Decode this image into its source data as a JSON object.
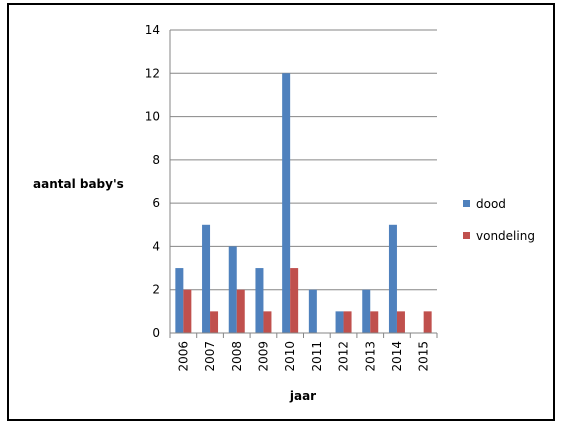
{
  "chart_data": {
    "type": "bar",
    "categories": [
      "2006",
      "2007",
      "2008",
      "2009",
      "2010",
      "2011",
      "2012",
      "2013",
      "2014",
      "2015"
    ],
    "series": [
      {
        "name": "dood",
        "values": [
          3,
          5,
          4,
          3,
          12,
          2,
          1,
          2,
          5,
          0
        ],
        "color": "#4F81BD"
      },
      {
        "name": "vondeling",
        "values": [
          2,
          1,
          2,
          1,
          3,
          0,
          1,
          1,
          1,
          1
        ],
        "color": "#C0504D"
      }
    ],
    "xlabel": "jaar",
    "ylabel": "aantal baby's",
    "ylim": [
      0,
      14
    ],
    "yticks": [
      0,
      2,
      4,
      6,
      8,
      10,
      12,
      14
    ],
    "grid": true,
    "legend_position": "right"
  }
}
